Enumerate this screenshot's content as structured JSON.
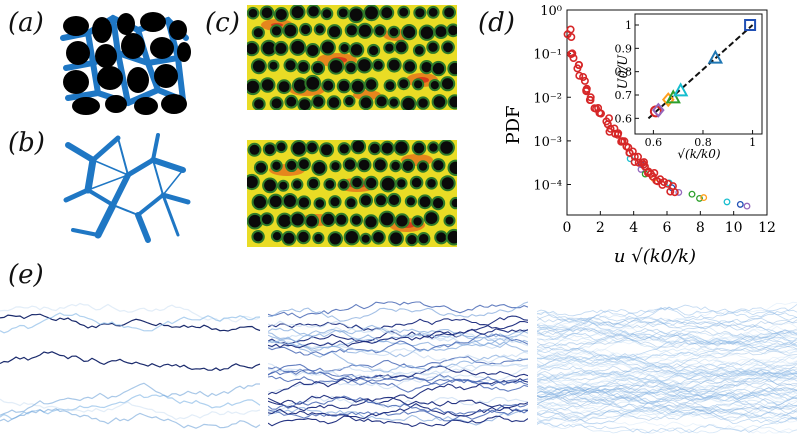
{
  "labels": {
    "a": "(a)",
    "b": "(b)",
    "c": "(c)",
    "d": "(d)",
    "e": "(e)"
  },
  "colors": {
    "pore_blue": "#1f77c4",
    "grain_black": "#000000",
    "field_yellow": "#f2e21a",
    "field_orange": "#f07a1c",
    "field_red": "#d8261c",
    "field_green": "#3a7f2a"
  },
  "chart_data": [
    {
      "type": "scatter",
      "title": "",
      "xlabel": "u √(k0/k)",
      "ylabel": "PDF",
      "xlim": [
        0,
        12
      ],
      "ylim": [
        2e-05,
        1
      ],
      "yscale": "log",
      "xticks": [
        "0",
        "2",
        "4",
        "6",
        "8",
        "10",
        "12"
      ],
      "yticks": [
        "10⁰",
        "10⁻¹",
        "10⁻²",
        "10⁻³",
        "10⁻⁴"
      ],
      "series": [
        {
          "x": [
            0.1,
            0.3,
            0.6,
            0.9,
            1.2,
            1.5,
            1.8,
            2.1,
            2.4,
            2.7,
            3.0,
            3.3,
            3.6,
            3.9,
            4.2,
            4.5,
            4.8,
            5.1,
            5.5,
            5.9,
            6.3
          ],
          "y": [
            0.3,
            0.09,
            0.05,
            0.028,
            0.016,
            0.01,
            0.0065,
            0.0042,
            0.0028,
            0.0019,
            0.0013,
            0.0009,
            0.00065,
            0.00048,
            0.00037,
            0.00029,
            0.00023,
            0.00018,
            0.00014,
            0.00011,
            8e-05
          ]
        }
      ],
      "inset": {
        "type": "scatter",
        "xlabel": "√(k/k0)",
        "ylabel": "U0/U",
        "xlim": [
          0.55,
          1.03
        ],
        "ylim": [
          0.55,
          1.03
        ],
        "xticks": [
          "0.6",
          "0.8",
          "1"
        ],
        "yticks": [
          "0.6",
          "0.7",
          "0.8",
          "0.9",
          "1"
        ],
        "points": [
          {
            "x": 0.61,
            "y": 0.63,
            "color": "#d62728",
            "marker": "circle"
          },
          {
            "x": 0.62,
            "y": 0.635,
            "color": "#9467bd",
            "marker": "diamond"
          },
          {
            "x": 0.66,
            "y": 0.68,
            "color": "#ff9f1c",
            "marker": "diamond"
          },
          {
            "x": 0.68,
            "y": 0.69,
            "color": "#2ca02c",
            "marker": "triangle"
          },
          {
            "x": 0.71,
            "y": 0.72,
            "color": "#17becf",
            "marker": "triangle"
          },
          {
            "x": 0.85,
            "y": 0.86,
            "color": "#1f77b4",
            "marker": "triangle"
          },
          {
            "x": 0.99,
            "y": 1.0,
            "color": "#1f4fb4",
            "marker": "square"
          }
        ],
        "fit": [
          [
            0.58,
            0.6
          ],
          [
            1.0,
            1.0
          ]
        ]
      }
    }
  ]
}
